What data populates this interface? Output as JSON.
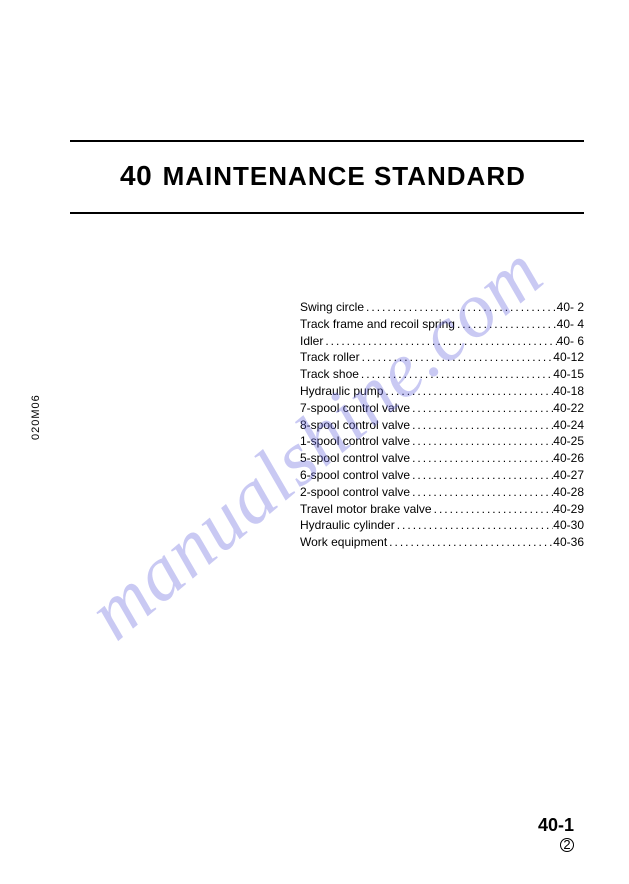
{
  "title": {
    "number": "40",
    "text": "MAINTENANCE STANDARD"
  },
  "side_code": "020M06",
  "footer": {
    "page": "40-1",
    "rev": "2"
  },
  "watermark": "manualshine.com",
  "toc": {
    "items": [
      {
        "label": "Swing circle",
        "page": "40- 2"
      },
      {
        "label": "Track frame and recoil spring",
        "page": "40- 4"
      },
      {
        "label": "Idler",
        "page": "40- 6"
      },
      {
        "label": "Track roller",
        "page": "40-12"
      },
      {
        "label": "Track shoe",
        "page": "40-15"
      },
      {
        "label": "Hydraulic pump",
        "page": "40-18"
      },
      {
        "label": "7-spool control valve",
        "page": "40-22"
      },
      {
        "label": "8-spool control valve",
        "page": "40-24"
      },
      {
        "label": "1-spool control valve",
        "page": "40-25"
      },
      {
        "label": "5-spool control valve",
        "page": "40-26"
      },
      {
        "label": "6-spool control valve",
        "page": "40-27"
      },
      {
        "label": "2-spool control valve",
        "page": "40-28"
      },
      {
        "label": "Travel motor brake valve",
        "page": "40-29"
      },
      {
        "label": "Hydraulic cylinder",
        "page": "40-30"
      },
      {
        "label": "Work equipment",
        "page": "40-36"
      }
    ]
  }
}
